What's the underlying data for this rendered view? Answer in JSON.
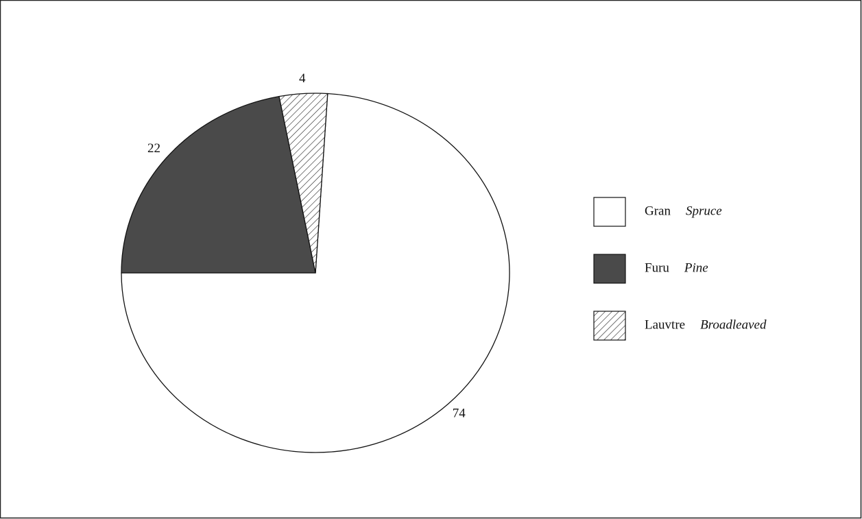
{
  "chart_data": {
    "type": "pie",
    "categories": [
      "Gran",
      "Furu",
      "Lauvtre"
    ],
    "categories_english": [
      "Spruce",
      "Pine",
      "Broadleaved"
    ],
    "values": [
      74,
      22,
      4
    ],
    "fills": [
      "#ffffff",
      "#4a4a4a",
      "hatch"
    ],
    "legend": "right"
  }
}
